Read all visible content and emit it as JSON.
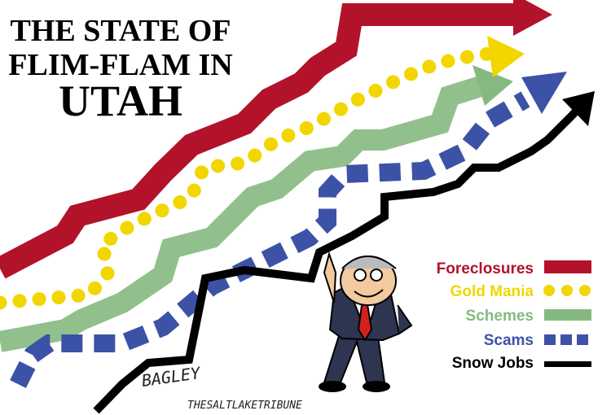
{
  "title": {
    "lines": [
      "THE STATE OF",
      "FLIM-FLAM IN",
      "UTAH"
    ]
  },
  "legend": [
    {
      "label": "Foreclosures",
      "color": "#b3122b"
    },
    {
      "label": "Gold Mania",
      "color": "#f2d600"
    },
    {
      "label": "Schemes",
      "color": "#86b97f"
    },
    {
      "label": "Scams",
      "color": "#3c52a6"
    },
    {
      "label": "Snow Jobs",
      "color": "#000000"
    }
  ],
  "signature": {
    "artist": "BAGLEY",
    "paper": "THESALTLAKETRIBUNE"
  }
}
